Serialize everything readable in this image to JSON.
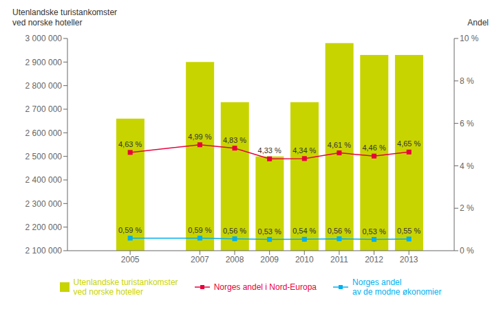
{
  "chart_data": {
    "type": "bar",
    "ylabel": "Utenlandske turistankomster\nved norske hoteller",
    "y2label": "Andel",
    "x": [
      2005,
      2007,
      2008,
      2009,
      2010,
      2011,
      2012,
      2013
    ],
    "xlim": [
      2003.2,
      2014.3
    ],
    "xticks": [
      2005,
      2007,
      2008,
      2009,
      2010,
      2011,
      2012,
      2013
    ],
    "ylim": [
      2100000,
      3000000
    ],
    "yticks": [
      {
        "value": 2100000,
        "label": "2 100 000"
      },
      {
        "value": 2200000,
        "label": "2 200 000"
      },
      {
        "value": 2300000,
        "label": "2 300 000"
      },
      {
        "value": 2400000,
        "label": "2 400 000"
      },
      {
        "value": 2500000,
        "label": "2 500 000"
      },
      {
        "value": 2600000,
        "label": "2 600 000"
      },
      {
        "value": 2700000,
        "label": "2 700 000"
      },
      {
        "value": 2800000,
        "label": "2 800 000"
      },
      {
        "value": 2900000,
        "label": "2 900 000"
      },
      {
        "value": 3000000,
        "label": "3 000 000"
      }
    ],
    "y2lim": [
      0,
      10
    ],
    "y2ticks": [
      {
        "value": 0,
        "label": "0 %"
      },
      {
        "value": 2,
        "label": "2 %"
      },
      {
        "value": 4,
        "label": "4 %"
      },
      {
        "value": 6,
        "label": "6 %"
      },
      {
        "value": 8,
        "label": "8 %"
      },
      {
        "value": 10,
        "label": "10 %"
      }
    ],
    "grid": false,
    "legend": "bottom",
    "series": [
      {
        "name": "Utenlandske turistankomster\nved norske hoteller",
        "type": "bar",
        "color": "#c8d400",
        "values": [
          2660000,
          2900000,
          2730000,
          2500000,
          2730000,
          2980000,
          2930000,
          2930000
        ],
        "data_labels": false
      },
      {
        "name": "Norges andel i Nord-Europa",
        "type": "line",
        "axis": "y2",
        "color": "#e8003d",
        "marker": "square",
        "values": [
          4.63,
          4.99,
          4.83,
          4.33,
          4.34,
          4.61,
          4.46,
          4.65
        ],
        "value_labels": [
          "4,63 %",
          "4,99 %",
          "4,83 %",
          "4,33 %",
          "4,34 %",
          "4,61 %",
          "4,46 %",
          "4,65 %"
        ],
        "data_labels": true
      },
      {
        "name": "Norges andel\nav de modne økonomier",
        "type": "line",
        "axis": "y2",
        "color": "#00b0f0",
        "marker": "square",
        "values": [
          0.59,
          0.59,
          0.56,
          0.53,
          0.54,
          0.56,
          0.53,
          0.55
        ],
        "value_labels": [
          "0,59 %",
          "0,59 %",
          "0,56 %",
          "0,53 %",
          "0,54 %",
          "0,56 %",
          "0,53 %",
          "0,55 %"
        ],
        "data_labels": true
      }
    ]
  }
}
